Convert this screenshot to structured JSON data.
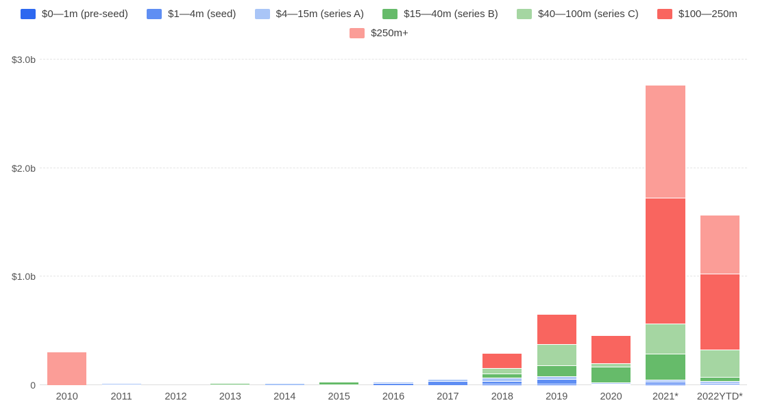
{
  "legend": {
    "row1": [
      {
        "label": "$0—1m (pre-seed)",
        "color": "#2d68f0"
      },
      {
        "label": "$1—4m (seed)",
        "color": "#5f8ef3"
      },
      {
        "label": "$4—15m (series A)",
        "color": "#a9c5f7"
      },
      {
        "label": "$15—40m (series B)",
        "color": "#66bb6a"
      },
      {
        "label": "$40—100m (series C)",
        "color": "#a5d6a2"
      },
      {
        "label": "$100—250m",
        "color": "#f9655f"
      }
    ],
    "row2": [
      {
        "label": "$250m+",
        "color": "#fb9d97"
      }
    ]
  },
  "chart_data": {
    "type": "bar",
    "stacked": true,
    "unit": "$ billions",
    "legend_position": "top",
    "grid": "dashed-horizontal",
    "ymax": 3.0,
    "y_ticks": [
      {
        "label": "$3.0b",
        "value": 3.0
      },
      {
        "label": "$2.0b",
        "value": 2.0
      },
      {
        "label": "$1.0b",
        "value": 1.0
      },
      {
        "label": "0",
        "value": 0
      }
    ],
    "categories": [
      "2010",
      "2011",
      "2012",
      "2013",
      "2014",
      "2015",
      "2016",
      "2017",
      "2018",
      "2019",
      "2020",
      "2021*",
      "2022YTD*"
    ],
    "series": [
      {
        "name": "$0—1m (pre-seed)",
        "color": "#2d68f0",
        "values": [
          0,
          0,
          0,
          0,
          0,
          0,
          0,
          0,
          0.01,
          0.01,
          0.005,
          0.01,
          0.005
        ]
      },
      {
        "name": "$1—4m (seed)",
        "color": "#5f8ef3",
        "values": [
          0,
          0.005,
          0,
          0,
          0,
          0,
          0.02,
          0.04,
          0.03,
          0.05,
          0.005,
          0.02,
          0.01
        ]
      },
      {
        "name": "$4—15m (series A)",
        "color": "#a9c5f7",
        "values": [
          0,
          0.005,
          0,
          0.005,
          0.01,
          0.005,
          0.005,
          0.01,
          0.03,
          0.02,
          0.01,
          0.02,
          0.02
        ]
      },
      {
        "name": "$15—40m (series B)",
        "color": "#66bb6a",
        "values": [
          0,
          0,
          0,
          0.005,
          0,
          0.02,
          0,
          0,
          0.04,
          0.1,
          0.15,
          0.24,
          0.04
        ]
      },
      {
        "name": "$40—100m (series C)",
        "color": "#a5d6a2",
        "values": [
          0,
          0,
          0,
          0,
          0,
          0,
          0,
          0,
          0.05,
          0.2,
          0.03,
          0.28,
          0.25
        ]
      },
      {
        "name": "$100—250m",
        "color": "#f9655f",
        "values": [
          0,
          0,
          0,
          0,
          0,
          0,
          0,
          0,
          0.13,
          0.27,
          0.25,
          1.16,
          0.7
        ]
      },
      {
        "name": "$250m+",
        "color": "#fb9d97",
        "values": [
          0.3,
          0,
          0,
          0,
          0,
          0,
          0,
          0,
          0,
          0,
          0,
          1.03,
          0.54
        ]
      }
    ]
  }
}
